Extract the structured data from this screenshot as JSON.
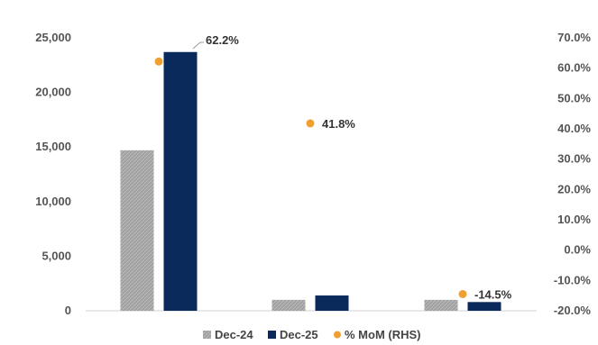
{
  "chart_data": {
    "type": "bar",
    "categories": [
      "",
      "",
      ""
    ],
    "series": [
      {
        "name": "Dec-24",
        "color": "#a6a6a6",
        "pattern": "hatch",
        "values": [
          14700,
          1000,
          1000
        ]
      },
      {
        "name": "Dec-25",
        "color": "#0b2a5c",
        "values": [
          23700,
          1400,
          800
        ]
      }
    ],
    "line_series": {
      "name": "% MoM (RHS)",
      "color": "#f0a030",
      "axis": "right",
      "values": [
        62.2,
        41.8,
        -14.5
      ],
      "labels": [
        "62.2%",
        "41.8%",
        "-14.5%"
      ]
    },
    "y_left": {
      "ylim": [
        0,
        25000
      ],
      "ticks": [
        0,
        5000,
        10000,
        15000,
        20000,
        25000
      ],
      "tick_labels": [
        "0",
        "5,000",
        "10,000",
        "15,000",
        "20,000",
        "25,000"
      ]
    },
    "y_right": {
      "ylim": [
        -20,
        70
      ],
      "ticks": [
        -20,
        -10,
        0,
        10,
        20,
        30,
        40,
        50,
        60,
        70
      ],
      "tick_labels": [
        "-20.0%",
        "-10.0%",
        "0.0%",
        "10.0%",
        "20.0%",
        "30.0%",
        "40.0%",
        "50.0%",
        "60.0%",
        "70.0%"
      ]
    },
    "grid": false,
    "legend": {
      "placement": "bottom"
    }
  }
}
